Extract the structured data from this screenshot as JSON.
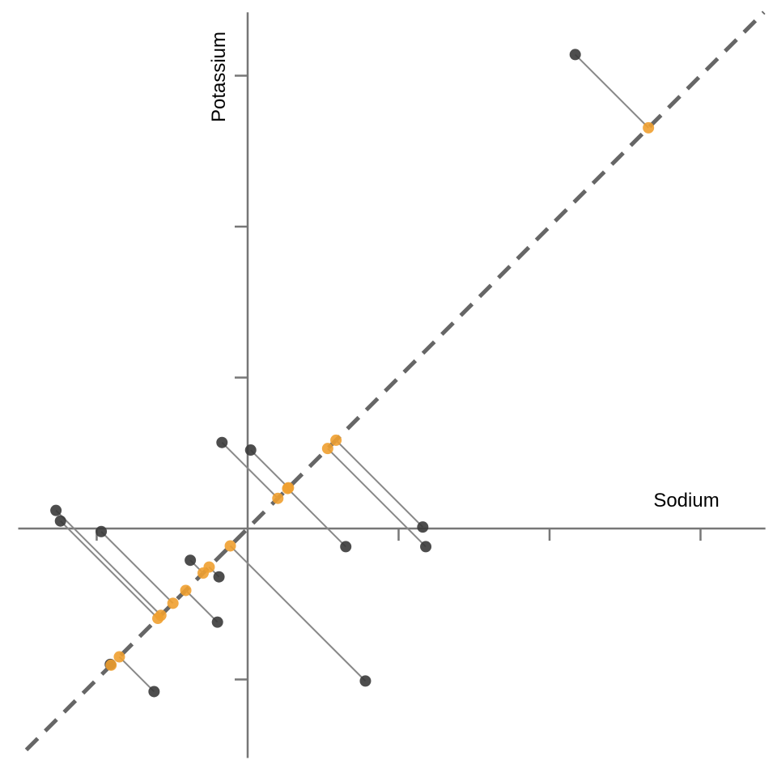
{
  "chart_data": {
    "type": "scatter",
    "x_label": "Sodium",
    "y_label": "Potassium",
    "xlim": [
      -1.52,
      3.43
    ],
    "ylim": [
      -1.52,
      3.42
    ],
    "xticks": [
      -1,
      1,
      2,
      3
    ],
    "yticks": [
      -1,
      1,
      2,
      3
    ],
    "series": [
      {
        "color": "#3a3a3a",
        "x": [
          2.17,
          -0.17,
          0.02,
          0.65,
          1.16,
          1.18,
          -1.27,
          -1.24,
          -0.97,
          -0.2,
          -0.38,
          -0.19,
          0.78,
          -0.91,
          -0.62
        ],
        "y": [
          3.14,
          0.57,
          0.52,
          -0.12,
          0.01,
          -0.12,
          0.12,
          0.05,
          -0.02,
          -0.62,
          -0.21,
          -0.32,
          -1.01,
          -0.9,
          -1.08
        ]
      },
      {
        "color": "#f0a030",
        "x": [
          2.655,
          0.2,
          0.27,
          0.265,
          0.585,
          0.53,
          -0.575,
          -0.595,
          -0.495,
          -0.41,
          -0.295,
          -0.255,
          -0.115,
          -0.905,
          -0.85
        ],
        "y": [
          2.655,
          0.2,
          0.27,
          0.265,
          0.585,
          0.53,
          -0.575,
          -0.595,
          -0.495,
          -0.41,
          -0.295,
          -0.255,
          -0.115,
          -0.905,
          -0.85
        ]
      }
    ]
  }
}
